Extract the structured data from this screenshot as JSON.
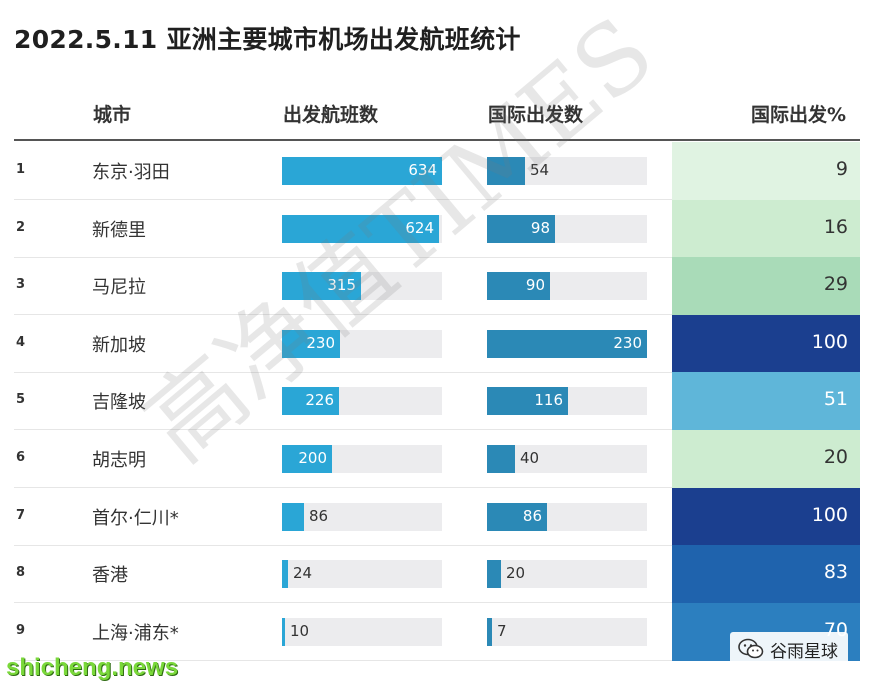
{
  "chart_data": {
    "type": "table",
    "title": "2022.5.11 亚洲主要城市机场出发航班统计",
    "columns": [
      "城市",
      "出发航班数",
      "国际出发数",
      "国际出发%"
    ],
    "rows": [
      {
        "rank": "1",
        "city": "东京·羽田",
        "departures": 634,
        "intl": 54,
        "pct": 9
      },
      {
        "rank": "2",
        "city": "新德里",
        "departures": 624,
        "intl": 98,
        "pct": 16
      },
      {
        "rank": "3",
        "city": "马尼拉",
        "departures": 315,
        "intl": 90,
        "pct": 29
      },
      {
        "rank": "4",
        "city": "新加坡",
        "departures": 230,
        "intl": 230,
        "pct": 100
      },
      {
        "rank": "5",
        "city": "吉隆坡",
        "departures": 226,
        "intl": 116,
        "pct": 51
      },
      {
        "rank": "6",
        "city": "胡志明",
        "departures": 200,
        "intl": 40,
        "pct": 20
      },
      {
        "rank": "7",
        "city": "首尔·仁川*",
        "departures": 86,
        "intl": 86,
        "pct": 100
      },
      {
        "rank": "8",
        "city": "香港",
        "departures": 24,
        "intl": 20,
        "pct": 83
      },
      {
        "rank": "9",
        "city": "上海·浦东*",
        "departures": 10,
        "intl": 7,
        "pct": 70
      }
    ],
    "departures_max": 634,
    "intl_max": 230
  },
  "watermark": "高净值TIMES",
  "source_site": "shicheng.news",
  "badge_label": "谷雨星球",
  "colors": {
    "departure_bar": "#2aa6d6",
    "intl_bar": "#2b89b6",
    "track": "#ececee",
    "pct_scale": [
      "#e0f3e2",
      "#cdecd0",
      "#a9dbb8",
      "#5fb6d9",
      "#2c7fbf",
      "#1f63ad",
      "#1b3f8f"
    ]
  }
}
